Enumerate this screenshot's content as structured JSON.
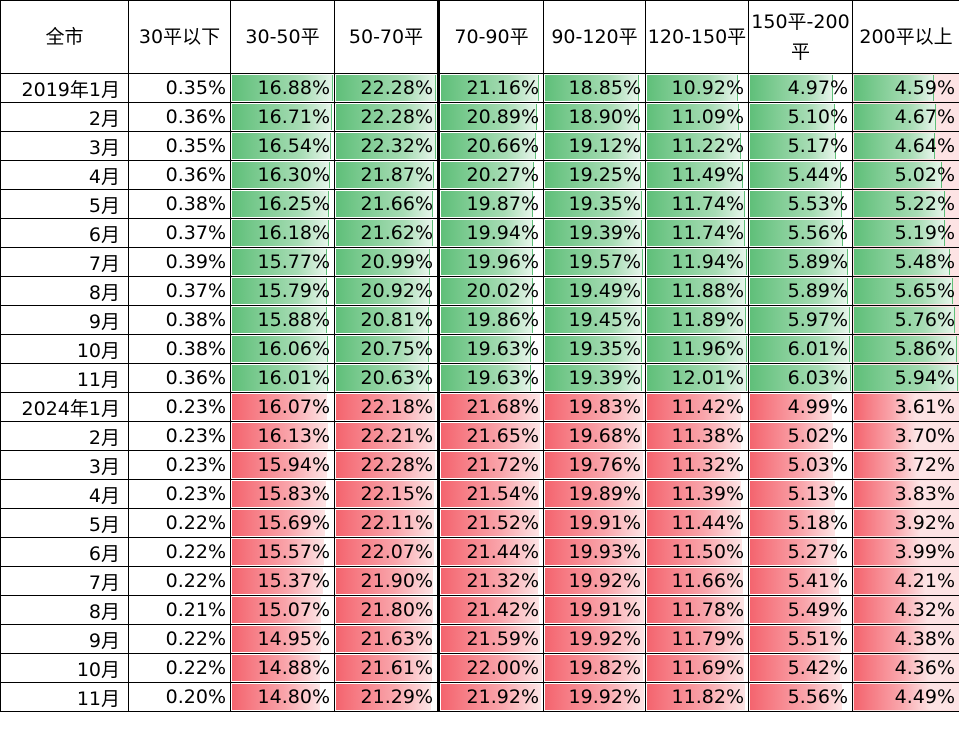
{
  "headers": [
    "全市",
    "30平以下",
    "30-50平",
    "50-70平",
    "70-90平",
    "90-120平",
    "120-150平",
    "150平-200平",
    "200平以上"
  ],
  "rows_2019": [
    {
      "label": "2019年1月",
      "v": [
        "0.35%",
        "16.88%",
        "22.28%",
        "21.16%",
        "18.85%",
        "10.92%",
        "4.97%",
        "4.59%"
      ]
    },
    {
      "label": "2月",
      "v": [
        "0.36%",
        "16.71%",
        "22.28%",
        "20.89%",
        "18.90%",
        "11.09%",
        "5.10%",
        "4.67%"
      ]
    },
    {
      "label": "3月",
      "v": [
        "0.35%",
        "16.54%",
        "22.32%",
        "20.66%",
        "19.12%",
        "11.22%",
        "5.17%",
        "4.64%"
      ]
    },
    {
      "label": "4月",
      "v": [
        "0.36%",
        "16.30%",
        "21.87%",
        "20.27%",
        "19.25%",
        "11.49%",
        "5.44%",
        "5.02%"
      ]
    },
    {
      "label": "5月",
      "v": [
        "0.38%",
        "16.25%",
        "21.66%",
        "19.87%",
        "19.35%",
        "11.74%",
        "5.53%",
        "5.22%"
      ]
    },
    {
      "label": "6月",
      "v": [
        "0.37%",
        "16.18%",
        "21.62%",
        "19.94%",
        "19.39%",
        "11.74%",
        "5.56%",
        "5.19%"
      ]
    },
    {
      "label": "7月",
      "v": [
        "0.39%",
        "15.77%",
        "20.99%",
        "19.96%",
        "19.57%",
        "11.94%",
        "5.89%",
        "5.48%"
      ]
    },
    {
      "label": "8月",
      "v": [
        "0.37%",
        "15.79%",
        "20.92%",
        "20.02%",
        "19.49%",
        "11.88%",
        "5.89%",
        "5.65%"
      ]
    },
    {
      "label": "9月",
      "v": [
        "0.38%",
        "15.88%",
        "20.81%",
        "19.86%",
        "19.45%",
        "11.89%",
        "5.97%",
        "5.76%"
      ]
    },
    {
      "label": "10月",
      "v": [
        "0.38%",
        "16.06%",
        "20.75%",
        "19.63%",
        "19.35%",
        "11.96%",
        "6.01%",
        "5.86%"
      ]
    },
    {
      "label": "11月",
      "v": [
        "0.36%",
        "16.01%",
        "20.63%",
        "19.63%",
        "19.39%",
        "12.01%",
        "6.03%",
        "5.94%"
      ]
    }
  ],
  "rows_2024": [
    {
      "label": "2024年1月",
      "v": [
        "0.23%",
        "16.07%",
        "22.18%",
        "21.68%",
        "19.83%",
        "11.42%",
        "4.99%",
        "3.61%"
      ]
    },
    {
      "label": "2月",
      "v": [
        "0.23%",
        "16.13%",
        "22.21%",
        "21.65%",
        "19.68%",
        "11.38%",
        "5.02%",
        "3.70%"
      ]
    },
    {
      "label": "3月",
      "v": [
        "0.23%",
        "15.94%",
        "22.28%",
        "21.72%",
        "19.76%",
        "11.32%",
        "5.03%",
        "3.72%"
      ]
    },
    {
      "label": "4月",
      "v": [
        "0.23%",
        "15.83%",
        "22.15%",
        "21.54%",
        "19.89%",
        "11.39%",
        "5.13%",
        "3.83%"
      ]
    },
    {
      "label": "5月",
      "v": [
        "0.22%",
        "15.69%",
        "22.11%",
        "21.52%",
        "19.91%",
        "11.44%",
        "5.18%",
        "3.92%"
      ]
    },
    {
      "label": "6月",
      "v": [
        "0.22%",
        "15.57%",
        "22.07%",
        "21.44%",
        "19.93%",
        "11.50%",
        "5.27%",
        "3.99%"
      ]
    },
    {
      "label": "7月",
      "v": [
        "0.22%",
        "15.37%",
        "21.90%",
        "21.32%",
        "19.92%",
        "11.66%",
        "5.41%",
        "4.21%"
      ]
    },
    {
      "label": "8月",
      "v": [
        "0.21%",
        "15.07%",
        "21.80%",
        "21.42%",
        "19.91%",
        "11.78%",
        "5.49%",
        "4.32%"
      ]
    },
    {
      "label": "9月",
      "v": [
        "0.22%",
        "14.95%",
        "21.63%",
        "21.59%",
        "19.92%",
        "11.79%",
        "5.51%",
        "4.38%"
      ]
    },
    {
      "label": "10月",
      "v": [
        "0.22%",
        "14.88%",
        "21.61%",
        "22.00%",
        "19.82%",
        "11.69%",
        "5.42%",
        "4.36%"
      ]
    },
    {
      "label": "11月",
      "v": [
        "0.20%",
        "14.80%",
        "21.29%",
        "21.92%",
        "19.92%",
        "11.82%",
        "5.56%",
        "4.49%"
      ]
    }
  ],
  "colors": {
    "green_bar": "#5fbf79",
    "red_bar": "#f4646e",
    "pink_cell": "#fde3e4"
  }
}
